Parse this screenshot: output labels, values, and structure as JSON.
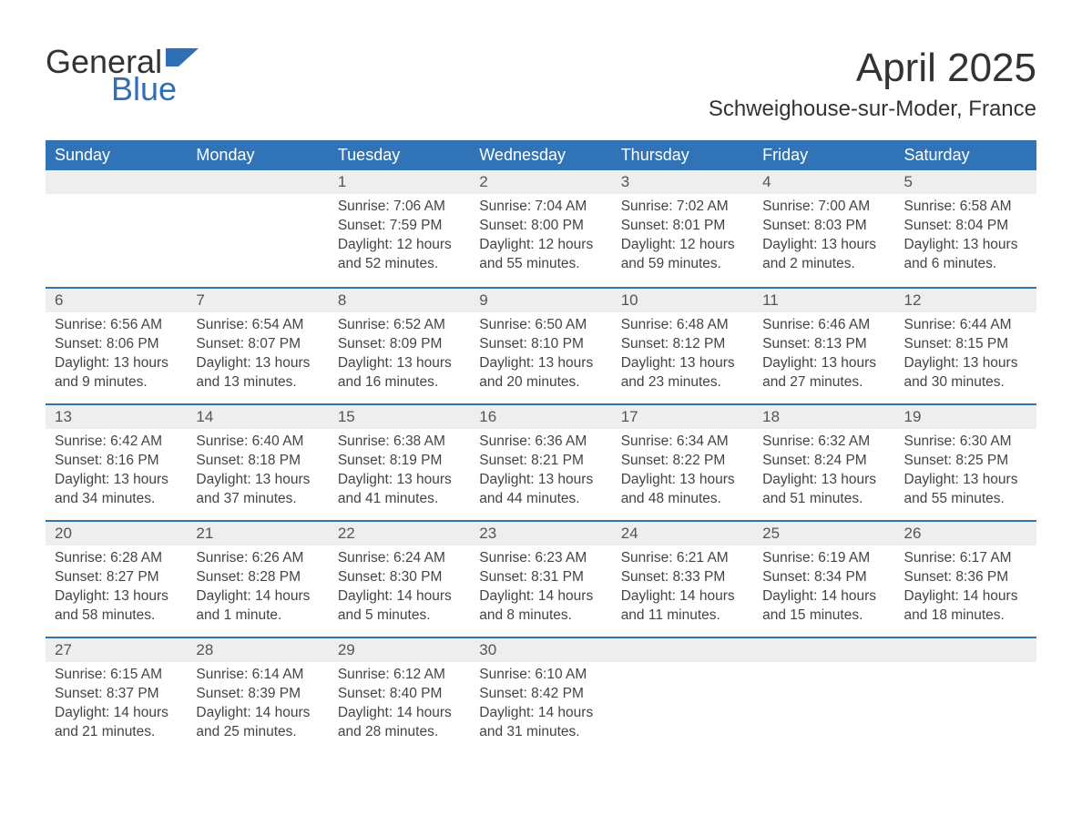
{
  "brand": {
    "general": "General",
    "blue": "Blue"
  },
  "colors": {
    "header_bg": "#3173b7",
    "header_text": "#ffffff",
    "daynum_bg": "#eeeeee",
    "row_divider": "#3173b7",
    "body_text": "#444444",
    "title_text": "#333333",
    "logo_blue": "#2f6fb4",
    "page_bg": "#ffffff"
  },
  "title": "April 2025",
  "location": "Schweighouse-sur-Moder, France",
  "weekdays": [
    "Sunday",
    "Monday",
    "Tuesday",
    "Wednesday",
    "Thursday",
    "Friday",
    "Saturday"
  ],
  "weeks": [
    [
      null,
      null,
      {
        "n": "1",
        "sunrise": "Sunrise: 7:06 AM",
        "sunset": "Sunset: 7:59 PM",
        "daylight": "Daylight: 12 hours and 52 minutes."
      },
      {
        "n": "2",
        "sunrise": "Sunrise: 7:04 AM",
        "sunset": "Sunset: 8:00 PM",
        "daylight": "Daylight: 12 hours and 55 minutes."
      },
      {
        "n": "3",
        "sunrise": "Sunrise: 7:02 AM",
        "sunset": "Sunset: 8:01 PM",
        "daylight": "Daylight: 12 hours and 59 minutes."
      },
      {
        "n": "4",
        "sunrise": "Sunrise: 7:00 AM",
        "sunset": "Sunset: 8:03 PM",
        "daylight": "Daylight: 13 hours and 2 minutes."
      },
      {
        "n": "5",
        "sunrise": "Sunrise: 6:58 AM",
        "sunset": "Sunset: 8:04 PM",
        "daylight": "Daylight: 13 hours and 6 minutes."
      }
    ],
    [
      {
        "n": "6",
        "sunrise": "Sunrise: 6:56 AM",
        "sunset": "Sunset: 8:06 PM",
        "daylight": "Daylight: 13 hours and 9 minutes."
      },
      {
        "n": "7",
        "sunrise": "Sunrise: 6:54 AM",
        "sunset": "Sunset: 8:07 PM",
        "daylight": "Daylight: 13 hours and 13 minutes."
      },
      {
        "n": "8",
        "sunrise": "Sunrise: 6:52 AM",
        "sunset": "Sunset: 8:09 PM",
        "daylight": "Daylight: 13 hours and 16 minutes."
      },
      {
        "n": "9",
        "sunrise": "Sunrise: 6:50 AM",
        "sunset": "Sunset: 8:10 PM",
        "daylight": "Daylight: 13 hours and 20 minutes."
      },
      {
        "n": "10",
        "sunrise": "Sunrise: 6:48 AM",
        "sunset": "Sunset: 8:12 PM",
        "daylight": "Daylight: 13 hours and 23 minutes."
      },
      {
        "n": "11",
        "sunrise": "Sunrise: 6:46 AM",
        "sunset": "Sunset: 8:13 PM",
        "daylight": "Daylight: 13 hours and 27 minutes."
      },
      {
        "n": "12",
        "sunrise": "Sunrise: 6:44 AM",
        "sunset": "Sunset: 8:15 PM",
        "daylight": "Daylight: 13 hours and 30 minutes."
      }
    ],
    [
      {
        "n": "13",
        "sunrise": "Sunrise: 6:42 AM",
        "sunset": "Sunset: 8:16 PM",
        "daylight": "Daylight: 13 hours and 34 minutes."
      },
      {
        "n": "14",
        "sunrise": "Sunrise: 6:40 AM",
        "sunset": "Sunset: 8:18 PM",
        "daylight": "Daylight: 13 hours and 37 minutes."
      },
      {
        "n": "15",
        "sunrise": "Sunrise: 6:38 AM",
        "sunset": "Sunset: 8:19 PM",
        "daylight": "Daylight: 13 hours and 41 minutes."
      },
      {
        "n": "16",
        "sunrise": "Sunrise: 6:36 AM",
        "sunset": "Sunset: 8:21 PM",
        "daylight": "Daylight: 13 hours and 44 minutes."
      },
      {
        "n": "17",
        "sunrise": "Sunrise: 6:34 AM",
        "sunset": "Sunset: 8:22 PM",
        "daylight": "Daylight: 13 hours and 48 minutes."
      },
      {
        "n": "18",
        "sunrise": "Sunrise: 6:32 AM",
        "sunset": "Sunset: 8:24 PM",
        "daylight": "Daylight: 13 hours and 51 minutes."
      },
      {
        "n": "19",
        "sunrise": "Sunrise: 6:30 AM",
        "sunset": "Sunset: 8:25 PM",
        "daylight": "Daylight: 13 hours and 55 minutes."
      }
    ],
    [
      {
        "n": "20",
        "sunrise": "Sunrise: 6:28 AM",
        "sunset": "Sunset: 8:27 PM",
        "daylight": "Daylight: 13 hours and 58 minutes."
      },
      {
        "n": "21",
        "sunrise": "Sunrise: 6:26 AM",
        "sunset": "Sunset: 8:28 PM",
        "daylight": "Daylight: 14 hours and 1 minute."
      },
      {
        "n": "22",
        "sunrise": "Sunrise: 6:24 AM",
        "sunset": "Sunset: 8:30 PM",
        "daylight": "Daylight: 14 hours and 5 minutes."
      },
      {
        "n": "23",
        "sunrise": "Sunrise: 6:23 AM",
        "sunset": "Sunset: 8:31 PM",
        "daylight": "Daylight: 14 hours and 8 minutes."
      },
      {
        "n": "24",
        "sunrise": "Sunrise: 6:21 AM",
        "sunset": "Sunset: 8:33 PM",
        "daylight": "Daylight: 14 hours and 11 minutes."
      },
      {
        "n": "25",
        "sunrise": "Sunrise: 6:19 AM",
        "sunset": "Sunset: 8:34 PM",
        "daylight": "Daylight: 14 hours and 15 minutes."
      },
      {
        "n": "26",
        "sunrise": "Sunrise: 6:17 AM",
        "sunset": "Sunset: 8:36 PM",
        "daylight": "Daylight: 14 hours and 18 minutes."
      }
    ],
    [
      {
        "n": "27",
        "sunrise": "Sunrise: 6:15 AM",
        "sunset": "Sunset: 8:37 PM",
        "daylight": "Daylight: 14 hours and 21 minutes."
      },
      {
        "n": "28",
        "sunrise": "Sunrise: 6:14 AM",
        "sunset": "Sunset: 8:39 PM",
        "daylight": "Daylight: 14 hours and 25 minutes."
      },
      {
        "n": "29",
        "sunrise": "Sunrise: 6:12 AM",
        "sunset": "Sunset: 8:40 PM",
        "daylight": "Daylight: 14 hours and 28 minutes."
      },
      {
        "n": "30",
        "sunrise": "Sunrise: 6:10 AM",
        "sunset": "Sunset: 8:42 PM",
        "daylight": "Daylight: 14 hours and 31 minutes."
      },
      null,
      null,
      null
    ]
  ]
}
